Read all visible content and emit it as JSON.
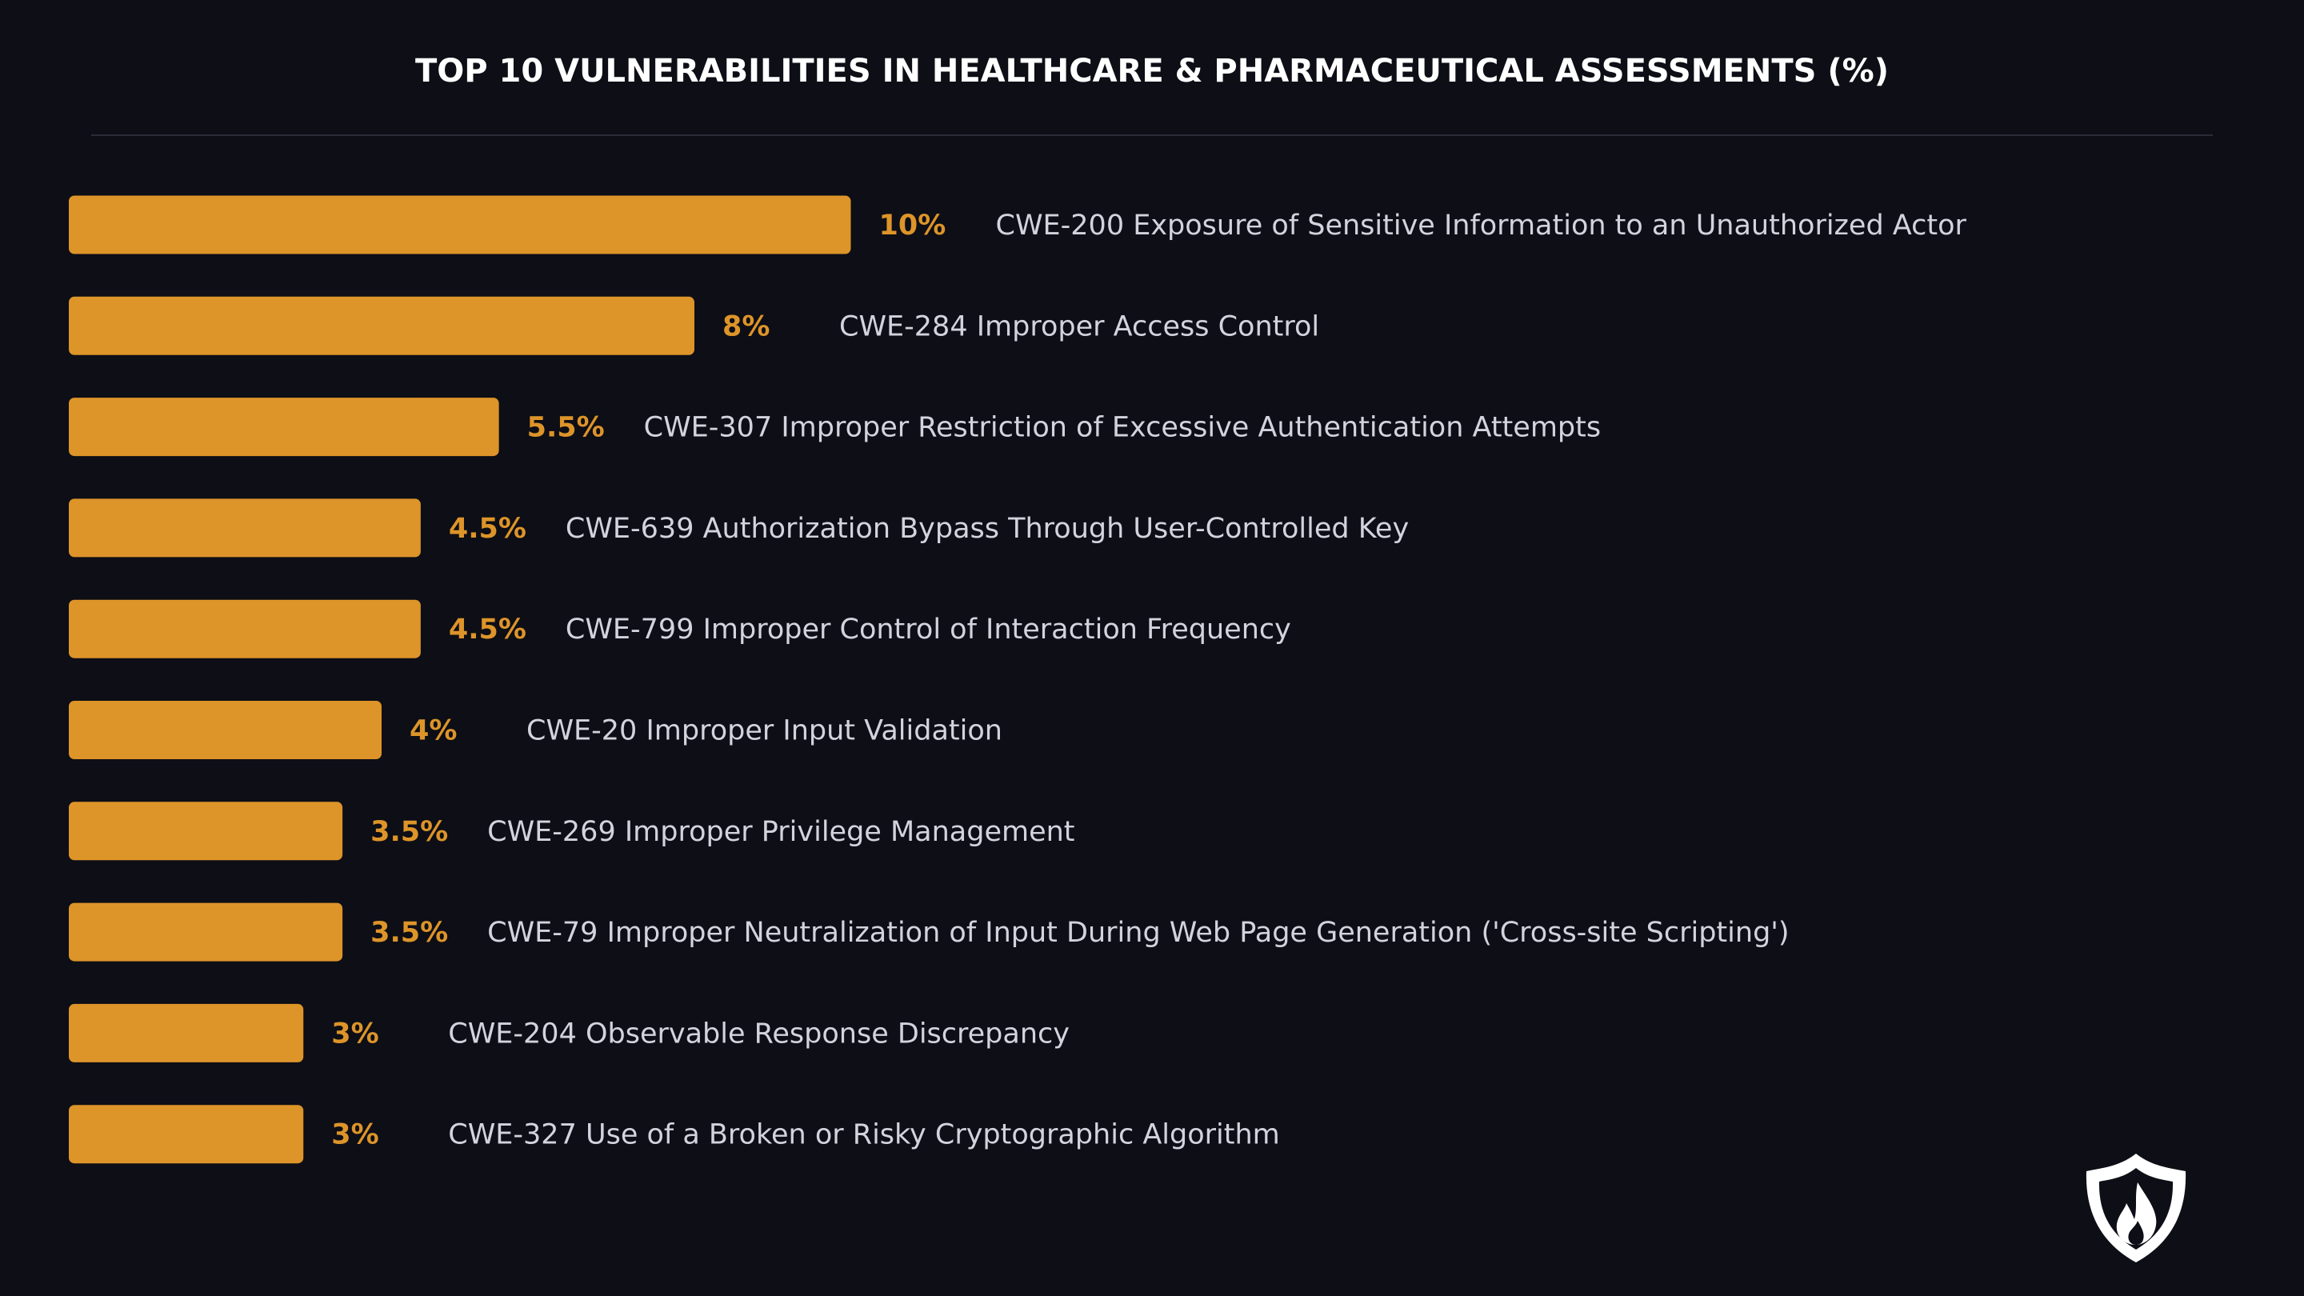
{
  "chart_data": {
    "type": "bar",
    "orientation": "horizontal",
    "title": "TOP 10 VULNERABILITIES IN HEALTHCARE & PHARMACEUTICAL ASSESSMENTS (%)",
    "categories": [
      "CWE-200 Exposure of Sensitive Information to an Unauthorized Actor",
      "CWE-284 Improper Access Control",
      "CWE-307 Improper Restriction of Excessive Authentication Attempts",
      "CWE-639 Authorization Bypass Through User-Controlled Key",
      "CWE-799 Improper Control of Interaction Frequency",
      "CWE-20 Improper Input Validation",
      "CWE-269 Improper Privilege Management",
      "CWE-79 Improper Neutralization of Input During Web Page Generation ('Cross-site Scripting')",
      "CWE-204 Observable Response Discrepancy",
      "CWE-327 Use of a Broken or Risky Cryptographic Algorithm"
    ],
    "values": [
      10,
      8,
      5.5,
      4.5,
      4.5,
      4,
      3.5,
      3.5,
      3,
      3
    ],
    "value_labels": [
      "10%",
      "8%",
      "5.5%",
      "4.5%",
      "4.5%",
      "4%",
      "3.5%",
      "3.5%",
      "3%",
      "3%"
    ],
    "color": "#dd9429"
  }
}
